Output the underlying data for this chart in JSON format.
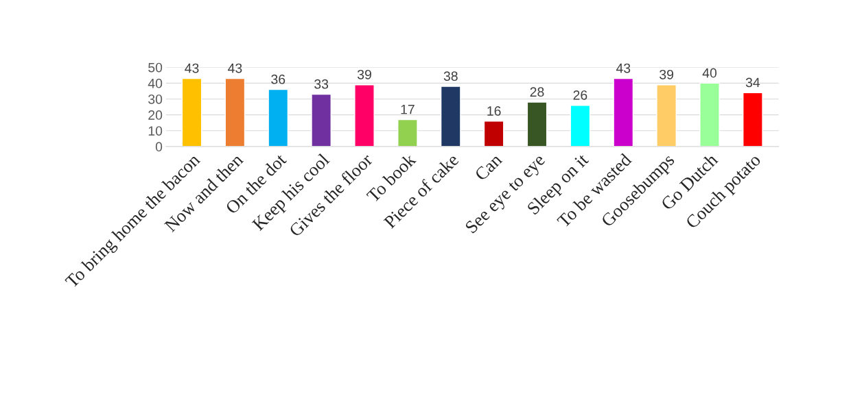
{
  "chart_data": {
    "type": "bar",
    "categories": [
      "To bring home the bacon",
      "Now and then",
      "On the dot",
      "Keep his cool",
      "Gives the floor",
      "To book",
      "Piece of cake",
      "Can",
      "See eye to eye",
      "Sleep on it",
      "To be wasted",
      "Goosebumps",
      "Go Dutch",
      "Couch potato"
    ],
    "values": [
      43,
      43,
      36,
      33,
      39,
      17,
      38,
      16,
      28,
      26,
      43,
      39,
      40,
      34
    ],
    "colors": [
      "#ffc000",
      "#ed7d31",
      "#00b0f0",
      "#7030a0",
      "#ff0066",
      "#92d050",
      "#1f3864",
      "#c00000",
      "#375623",
      "#00ffff",
      "#cc00cc",
      "#ffcc66",
      "#99ff99",
      "#ff0000"
    ],
    "ylim": [
      0,
      50
    ],
    "yticks": [
      0,
      10,
      20,
      30,
      40,
      50
    ],
    "grid": "y",
    "data_labels": true
  }
}
